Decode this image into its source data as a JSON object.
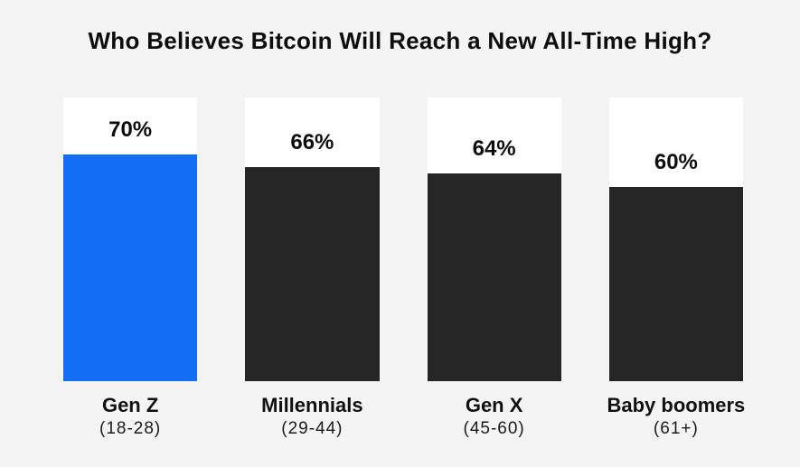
{
  "title": "Who Believes Bitcoin Will Reach a New All-Time High?",
  "colors": {
    "background": "#f4f4f4",
    "track_background": "#ffffff",
    "accent_blue": "#146ef5",
    "bar_dark": "#262626",
    "text": "#0d0d0d"
  },
  "chart_data": {
    "type": "bar",
    "title": "Who Believes Bitcoin Will Reach a New All-Time High?",
    "categories": [
      "Gen Z",
      "Millennials",
      "Gen X",
      "Baby boomers"
    ],
    "age_ranges": [
      "(18-28)",
      "(29-44)",
      "(45-60)",
      "(61+)"
    ],
    "values": [
      70,
      66,
      64,
      60
    ],
    "value_labels": [
      "70%",
      "66%",
      "64%",
      "60%"
    ],
    "bar_colors": [
      "#146ef5",
      "#262626",
      "#262626",
      "#262626"
    ],
    "highlight_index": 0,
    "xlabel": "",
    "ylabel": "",
    "ylim": [
      0,
      87.5
    ],
    "grid": false,
    "legend": null,
    "orientation": "vertical",
    "layout_note": "each bar sits in a white track; value label rendered inside track just above bar top"
  }
}
